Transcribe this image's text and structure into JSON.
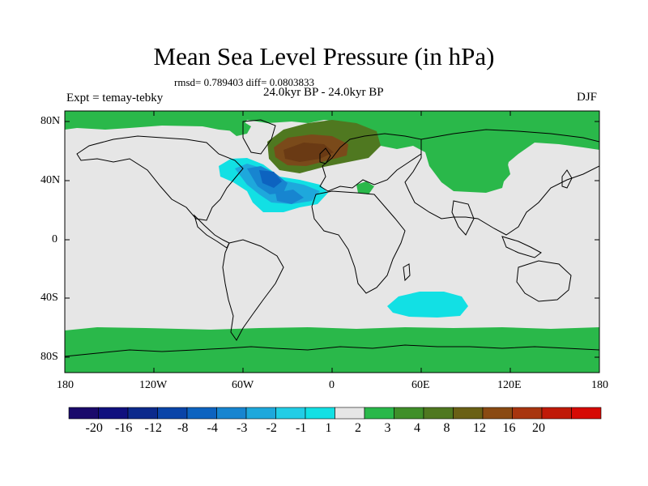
{
  "title": "Mean Sea Level Pressure (in hPa)",
  "stats": "rmsd= 0.789403 diff= 0.0803833",
  "experiment": "Expt = temay-tebky",
  "period": "24.0kyr BP - 24.0kyr BP",
  "season": "DJF",
  "axes": {
    "lon_labels": [
      "180",
      "120W",
      "60W",
      "0",
      "60E",
      "120E",
      "180"
    ],
    "lat_labels": [
      "80N",
      "40N",
      "0",
      "40S",
      "80S"
    ]
  },
  "colorbar": {
    "labels": [
      "-20",
      "-16",
      "-12",
      "-8",
      "-4",
      "-3",
      "-2",
      "-1",
      "1",
      "2",
      "3",
      "4",
      "8",
      "12",
      "16",
      "20"
    ],
    "colors": [
      "#1a0a6b",
      "#10107e",
      "#0c2a8c",
      "#0a44a8",
      "#0d63c0",
      "#1785d0",
      "#1ea8dc",
      "#22cde6",
      "#12e0e4",
      "#e6e6e6",
      "#2ab84a",
      "#3f8f2a",
      "#4f7820",
      "#6a6015",
      "#8a4a12",
      "#a8350f",
      "#c01a08",
      "#d60a04"
    ]
  },
  "colors": {
    "neutral": "#e6e6e6",
    "green": "#2ab84a",
    "cyan": "#12e0e4",
    "light_blue": "#1ea8dc",
    "blue": "#1785d0",
    "dark_blue": "#0d63c0",
    "olive": "#4f7820",
    "brown": "#7a4a1a"
  }
}
